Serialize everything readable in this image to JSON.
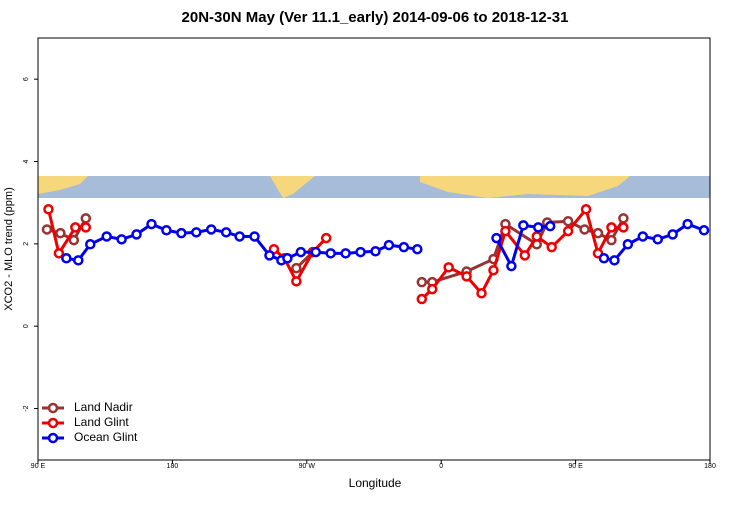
{
  "chart_data": {
    "type": "line",
    "title": "20N-30N May (Ver 11.1_early)   2014-09-06 to 2018-12-31",
    "x_label": "Longitude",
    "y_label": "XCO2 - MLO trend (ppm)",
    "xlim": [
      90,
      540
    ],
    "ylim": [
      -3.25,
      7
    ],
    "xticks": [
      {
        "value": 90,
        "label": "90 E"
      },
      {
        "value": 180,
        "label": "180"
      },
      {
        "value": 270,
        "label": "90 W"
      },
      {
        "value": 360,
        "label": "0"
      },
      {
        "value": 450,
        "label": "90 E"
      },
      {
        "value": 540,
        "label": "180"
      }
    ],
    "yticks": [
      -2,
      0,
      2,
      4,
      6
    ],
    "legend": "bottom-left",
    "series": [
      {
        "name": "Land Nadir",
        "color": "#993333",
        "x": [
          96,
          105,
          114,
          122,
          200,
          263,
          274,
          310,
          347,
          354,
          377,
          395,
          403,
          424,
          431,
          445,
          456,
          465,
          474,
          482
        ],
        "values": [
          2.35,
          2.26,
          2.09,
          2.62,
          null,
          1.41,
          1.8,
          null,
          1.07,
          1.07,
          1.33,
          1.63,
          2.48,
          1.99,
          2.52,
          2.55,
          2.35,
          2.26,
          2.09,
          2.62
        ]
      },
      {
        "name": "Land Glint",
        "color": "#ee0000",
        "x": [
          97,
          104,
          115,
          122,
          200,
          248,
          255,
          263,
          274,
          283,
          310,
          347,
          354,
          365,
          377,
          387,
          395,
          403,
          416,
          424,
          434,
          445,
          457,
          465,
          474,
          482
        ],
        "values": [
          2.84,
          1.77,
          2.4,
          2.4,
          null,
          1.87,
          1.65,
          1.09,
          1.8,
          2.14,
          null,
          0.66,
          0.9,
          1.43,
          1.21,
          0.8,
          1.36,
          2.31,
          1.72,
          2.18,
          1.92,
          2.31,
          2.84,
          1.77,
          2.4,
          2.4
        ]
      },
      {
        "name": "Ocean Glint",
        "color": "#0000ee",
        "x": [
          109,
          117,
          125,
          136,
          146,
          156,
          166,
          176,
          186,
          196,
          206,
          216,
          225,
          235,
          245,
          253,
          257,
          266,
          276,
          286,
          296,
          306,
          316,
          325,
          335,
          344,
          370,
          397,
          407,
          415,
          425,
          433,
          450,
          469,
          476,
          485,
          495,
          505,
          515,
          525,
          536
        ],
        "values": [
          1.65,
          1.6,
          1.99,
          2.18,
          2.11,
          2.23,
          2.48,
          2.33,
          2.26,
          2.28,
          2.35,
          2.28,
          2.18,
          2.18,
          1.72,
          1.6,
          1.65,
          1.8,
          1.8,
          1.77,
          1.77,
          1.8,
          1.82,
          1.97,
          1.92,
          1.87,
          null,
          2.14,
          1.46,
          2.45,
          2.4,
          2.43,
          null,
          1.65,
          1.6,
          1.99,
          2.18,
          2.11,
          2.23,
          2.48,
          2.33
        ]
      }
    ]
  }
}
